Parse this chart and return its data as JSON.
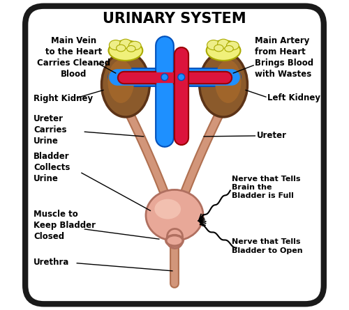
{
  "title": "URINARY SYSTEM",
  "background_color": "#ffffff",
  "border_color": "#1a1a1a",
  "kidney_color": "#8B5A2B",
  "kidney_edge": "#5C3317",
  "adrenal_color": "#F0F07A",
  "adrenal_edge": "#AAAA00",
  "vein_color": "#1E90FF",
  "vein_edge": "#0050BB",
  "artery_color": "#DC143C",
  "artery_edge": "#990000",
  "ureter_color": "#D2967A",
  "ureter_edge": "#B07050",
  "bladder_color": "#E8A898",
  "bladder_edge": "#B07060",
  "label_fontsize": 8.5,
  "title_fontsize": 15,
  "labels": {
    "main_vein": "Main Vein\nto the Heart\nCarries Cleaned\nBlood",
    "main_artery": "Main Artery\nfrom Heart\nBrings Blood\nwith Wastes",
    "right_kidney": "Right Kidney",
    "left_kidney": "Left Kidney",
    "ureter_left": "Ureter\nCarries\nUrine",
    "ureter_right": "Ureter",
    "bladder": "Bladder\nCollects\nUrine",
    "muscle": "Muscle to\nKeep Bladder\nClosed",
    "urethra": "Urethra",
    "nerve_full": "Nerve that Tells\nBrain the\nBladder is Full",
    "nerve_open": "Nerve that Tells\nBladder to Open"
  }
}
